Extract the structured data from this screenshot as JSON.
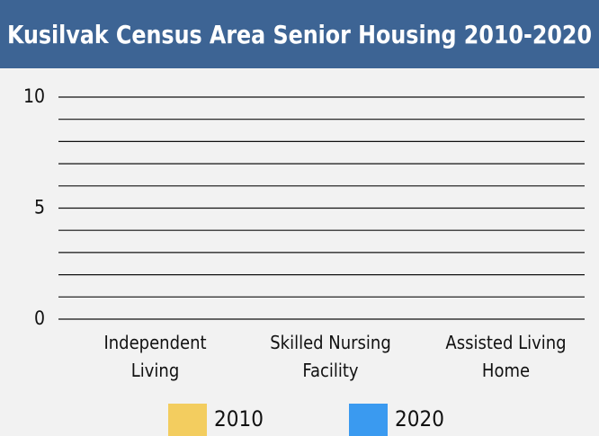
{
  "chart_data": {
    "type": "bar",
    "title": "Kusilvak Census Area Senior Housing 2010-2020",
    "categories": [
      "Independent Living",
      "Skilled Nursing Facility",
      "Assisted Living Home"
    ],
    "series": [
      {
        "name": "2010",
        "color": "#f3cd5f",
        "values": [
          0,
          0,
          0
        ]
      },
      {
        "name": "2020",
        "color": "#3a9af0",
        "values": [
          0,
          0,
          0
        ]
      }
    ],
    "ylim": [
      0,
      10
    ],
    "yticks": [
      0,
      5,
      10
    ],
    "minor_yticks": [
      1,
      2,
      3,
      4,
      6,
      7,
      8,
      9
    ],
    "grid": true,
    "legend": "bottom"
  }
}
